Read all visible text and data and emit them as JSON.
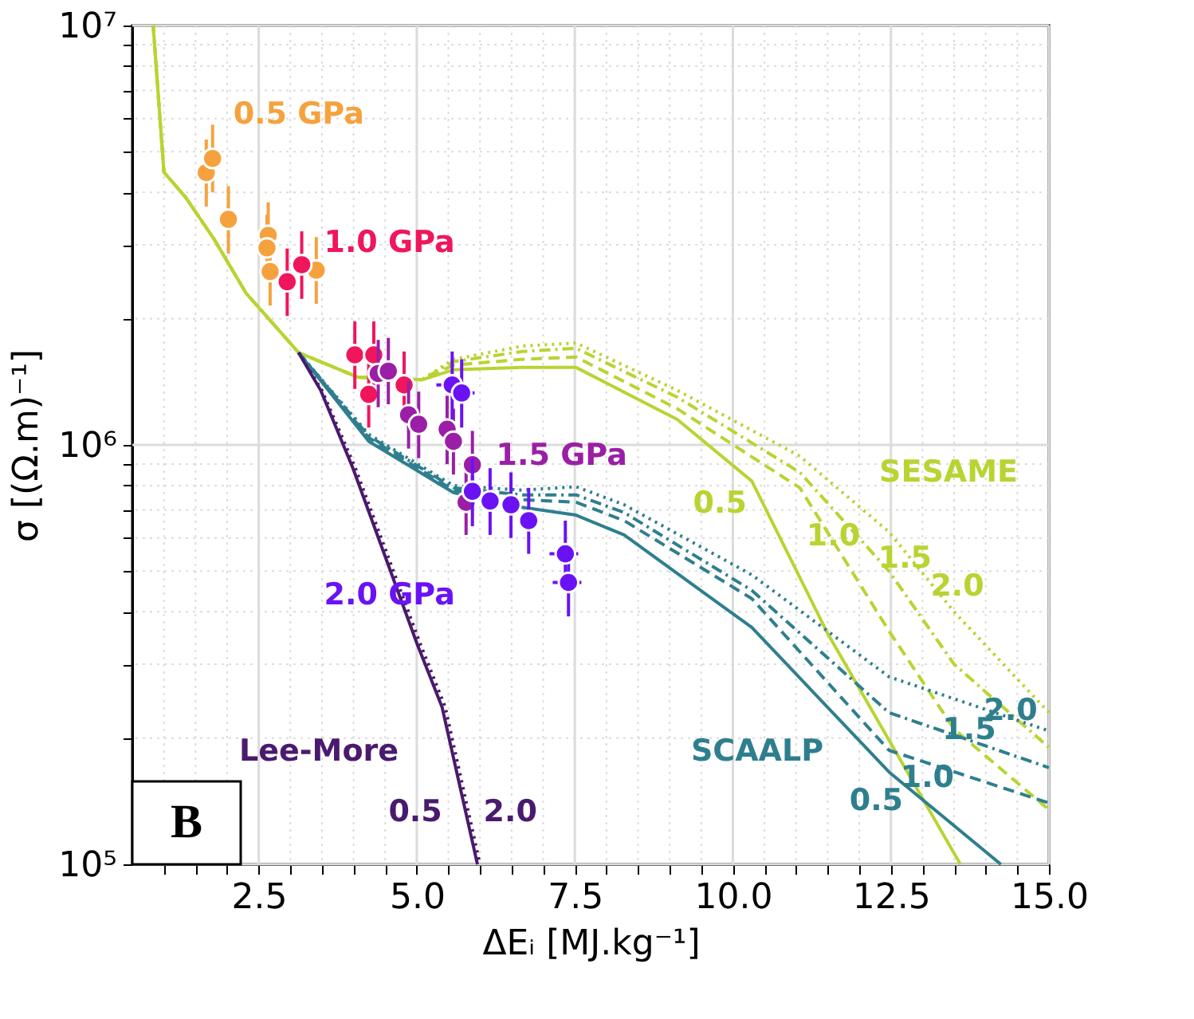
{
  "chart_data": {
    "type": "line",
    "xlabel": "ΔEᵢ [MJ.kg⁻¹]",
    "ylabel": "σ [(Ω.m)⁻¹]",
    "xlim": [
      0.5,
      15
    ],
    "ylim": [
      100000,
      10000000
    ],
    "log": "y",
    "grid": true,
    "xticks": [
      {
        "value": 1.0,
        "label": null
      },
      {
        "value": 1.5,
        "label": null
      },
      {
        "value": 2.0,
        "label": null
      },
      {
        "value": 2.5,
        "label": "2.5"
      },
      {
        "value": 3.0,
        "label": null
      },
      {
        "value": 3.5,
        "label": null
      },
      {
        "value": 4.0,
        "label": null
      },
      {
        "value": 4.5,
        "label": null
      },
      {
        "value": 5,
        "label": "5.0"
      },
      {
        "value": 5.5,
        "label": null
      },
      {
        "value": 6.0,
        "label": null
      },
      {
        "value": 6.5,
        "label": null
      },
      {
        "value": 7.0,
        "label": null
      },
      {
        "value": 7.5,
        "label": "7.5"
      },
      {
        "value": 8.0,
        "label": null
      },
      {
        "value": 8.5,
        "label": null
      },
      {
        "value": 9.0,
        "label": null
      },
      {
        "value": 9.5,
        "label": null
      },
      {
        "value": 10,
        "label": "10.0"
      },
      {
        "value": 10.5,
        "label": null
      },
      {
        "value": 11.0,
        "label": null
      },
      {
        "value": 11.5,
        "label": null
      },
      {
        "value": 12.0,
        "label": null
      },
      {
        "value": 12.5,
        "label": "12.5"
      },
      {
        "value": 13.0,
        "label": null
      },
      {
        "value": 13.5,
        "label": null
      },
      {
        "value": 14.0,
        "label": null
      },
      {
        "value": 14.5,
        "label": null
      },
      {
        "value": 15,
        "label": "15.0"
      }
    ],
    "yticks": [
      {
        "value": 100000,
        "label": "10⁵"
      },
      {
        "value": 200000,
        "label": null
      },
      {
        "value": 300000,
        "label": null
      },
      {
        "value": 400000,
        "label": null
      },
      {
        "value": 500000,
        "label": null
      },
      {
        "value": 600000,
        "label": null
      },
      {
        "value": 700000,
        "label": null
      },
      {
        "value": 800000,
        "label": null
      },
      {
        "value": 900000,
        "label": null
      },
      {
        "value": 1000000,
        "label": "10⁶"
      },
      {
        "value": 2000000,
        "label": null
      },
      {
        "value": 3000000,
        "label": null
      },
      {
        "value": 4000000,
        "label": null
      },
      {
        "value": 5000000,
        "label": null
      },
      {
        "value": 6000000,
        "label": null
      },
      {
        "value": 7000000,
        "label": null
      },
      {
        "value": 8000000,
        "label": null
      },
      {
        "value": 9000000,
        "label": null
      },
      {
        "value": 10000000,
        "label": "10⁷"
      }
    ],
    "series": [
      {
        "name": "0.5",
        "color": "#b8d432",
        "line_style": "solid",
        "x": [
          0.83,
          1.0,
          1.34,
          1.79,
          2.3,
          3.13,
          4.07,
          5.08,
          5.58,
          6.67,
          7.52,
          9.12,
          10.3,
          11.5,
          13.6
        ],
        "values": [
          10000000,
          4470000,
          3900000,
          3100000,
          2300000,
          1660000,
          1450000,
          1430000,
          1510000,
          1530000,
          1530000,
          1150000,
          820000,
          355000,
          100000
        ]
      },
      {
        "name": "1.0",
        "color": "#b8d432",
        "line_style": "dashed",
        "x": [
          0.83,
          1.0,
          1.34,
          1.79,
          2.3,
          3.13,
          4.07,
          5.08,
          5.58,
          6.67,
          7.52,
          9.12,
          11.06,
          12.47,
          13.5,
          15
        ],
        "values": [
          10000000,
          4470000,
          3900000,
          3100000,
          2300000,
          1660000,
          1450000,
          1430000,
          1550000,
          1600000,
          1620000,
          1220000,
          790000,
          360000,
          210000,
          135000
        ]
      },
      {
        "name": "1.5",
        "color": "#b8d432",
        "line_style": "dashdot",
        "x": [
          0.83,
          1.0,
          1.34,
          1.79,
          2.3,
          3.13,
          4.07,
          5.08,
          5.58,
          6.67,
          7.52,
          9.12,
          11.06,
          12.47,
          13.5,
          15
        ],
        "values": [
          10000000,
          4470000,
          3900000,
          3100000,
          2300000,
          1660000,
          1450000,
          1430000,
          1580000,
          1670000,
          1700000,
          1300000,
          860000,
          500000,
          300000,
          190000
        ]
      },
      {
        "name": "2.0",
        "color": "#b8d432",
        "line_style": "dotted",
        "x": [
          0.83,
          1.0,
          1.34,
          1.79,
          2.3,
          3.13,
          4.07,
          5.08,
          5.58,
          6.67,
          7.52,
          9.12,
          11.06,
          12.47,
          13.5,
          15
        ],
        "values": [
          10000000,
          4470000,
          3900000,
          3100000,
          2300000,
          1660000,
          1450000,
          1430000,
          1600000,
          1720000,
          1750000,
          1350000,
          940000,
          620000,
          400000,
          230000
        ]
      },
      {
        "name": "0.5",
        "color": "#2e7f8e",
        "line_style": "solid",
        "x": [
          3.13,
          4.24,
          5.58,
          6.67,
          7.52,
          8.28,
          10.3,
          12.47,
          14.24
        ],
        "values": [
          1660000,
          1020000,
          770000,
          710000,
          680000,
          610000,
          367000,
          166000,
          100000
        ]
      },
      {
        "name": "1.0",
        "color": "#2e7f8e",
        "line_style": "dashed",
        "x": [
          3.13,
          4.24,
          5.58,
          6.67,
          7.52,
          8.28,
          10.3,
          12.47,
          15
        ],
        "values": [
          1660000,
          1040000,
          780000,
          740000,
          730000,
          660000,
          430000,
          187000,
          140000
        ]
      },
      {
        "name": "1.5",
        "color": "#2e7f8e",
        "line_style": "dashdot",
        "x": [
          3.13,
          4.24,
          5.58,
          6.67,
          7.52,
          8.28,
          10.3,
          12.47,
          15
        ],
        "values": [
          1660000,
          1050000,
          790000,
          760000,
          760000,
          690000,
          450000,
          230000,
          170000
        ]
      },
      {
        "name": "2.0",
        "color": "#2e7f8e",
        "line_style": "dotted",
        "x": [
          3.13,
          4.24,
          5.58,
          6.67,
          7.52,
          8.28,
          10.3,
          12.47,
          15
        ],
        "values": [
          1660000,
          1060000,
          800000,
          780000,
          795000,
          720000,
          490000,
          280000,
          208000
        ]
      },
      {
        "name": "0.5",
        "color": "#4a1a6e",
        "line_style": "solid",
        "x": [
          3.13,
          3.48,
          3.99,
          5.0,
          5.4,
          5.96
        ],
        "values": [
          1660000,
          1350000,
          880000,
          337000,
          237000,
          100000
        ]
      },
      {
        "name": "2.0",
        "color": "#4a1a6e",
        "line_style": "dotted",
        "x": [
          3.13,
          3.5,
          4.03,
          5.05,
          5.45,
          6.0
        ],
        "values": [
          1660000,
          1350000,
          880000,
          337000,
          237000,
          100000
        ]
      },
      {
        "type": "scatter",
        "name": "0.5 GPa",
        "color": "#f5a23e",
        "marker": "circle",
        "x": [
          1.67,
          1.77,
          2.02,
          2.65,
          2.63,
          2.68,
          3.41
        ],
        "values": [
          4460000,
          4820000,
          3450000,
          3160000,
          2950000,
          2590000,
          2610000
        ],
        "errors": [
          [
            3700000,
            5350000
          ],
          [
            4000000,
            5800000
          ],
          [
            2860000,
            4140000
          ],
          [
            2620000,
            3790000
          ],
          [
            2450000,
            3540000
          ],
          [
            2150000,
            3110000
          ],
          [
            2170000,
            3130000
          ]
        ]
      },
      {
        "type": "scatter",
        "name": "1.0 GPa",
        "color": "#f0165c",
        "marker": "circle",
        "x": [
          2.95,
          3.18,
          4.02,
          4.32,
          4.24,
          4.8
        ],
        "values": [
          2450000,
          2690000,
          1640000,
          1640000,
          1320000,
          1390000
        ],
        "errors": [
          [
            2030000,
            2940000
          ],
          [
            2230000,
            3230000
          ],
          [
            1360000,
            1970000
          ],
          [
            1360000,
            1970000
          ],
          [
            1100000,
            1580000
          ],
          [
            1150000,
            1670000
          ]
        ]
      },
      {
        "type": "scatter",
        "name": "1.5 GPa",
        "color": "#9a1fa6",
        "marker": "circle",
        "x": [
          4.39,
          4.55,
          4.87,
          5.03,
          5.48,
          5.58,
          5.88,
          5.78
        ],
        "values": [
          1480000,
          1500000,
          1180000,
          1120000,
          1090000,
          1020000,
          897000,
          730000
        ],
        "errors": [
          [
            1230000,
            1780000
          ],
          [
            1250000,
            1800000
          ],
          [
            980000,
            1420000
          ],
          [
            930000,
            1340000
          ],
          [
            900000,
            1310000
          ],
          [
            850000,
            1220000
          ],
          [
            740000,
            1080000
          ],
          [
            610000,
            880000
          ]
        ]
      },
      {
        "type": "scatter",
        "name": "2.0 GPa",
        "color": "#6b12f5",
        "marker": "circle",
        "x": [
          5.56,
          5.71,
          5.88,
          6.16,
          6.49,
          6.77,
          7.35,
          7.4
        ],
        "values": [
          1390000,
          1330000,
          775000,
          735000,
          720000,
          660000,
          550000,
          470000
        ],
        "errors": [
          [
            1150000,
            1670000
          ],
          [
            1100000,
            1600000
          ],
          [
            640000,
            930000
          ],
          [
            610000,
            880000
          ],
          [
            600000,
            860000
          ],
          [
            550000,
            790000
          ],
          [
            460000,
            660000
          ],
          [
            390000,
            560000
          ]
        ],
        "xerrors": [
          0.25,
          0.25,
          null,
          null,
          null,
          null,
          0.25,
          0.25
        ]
      }
    ],
    "annotations": [
      "SESAME",
      "SCAALP",
      "Lee-More",
      "B"
    ]
  }
}
